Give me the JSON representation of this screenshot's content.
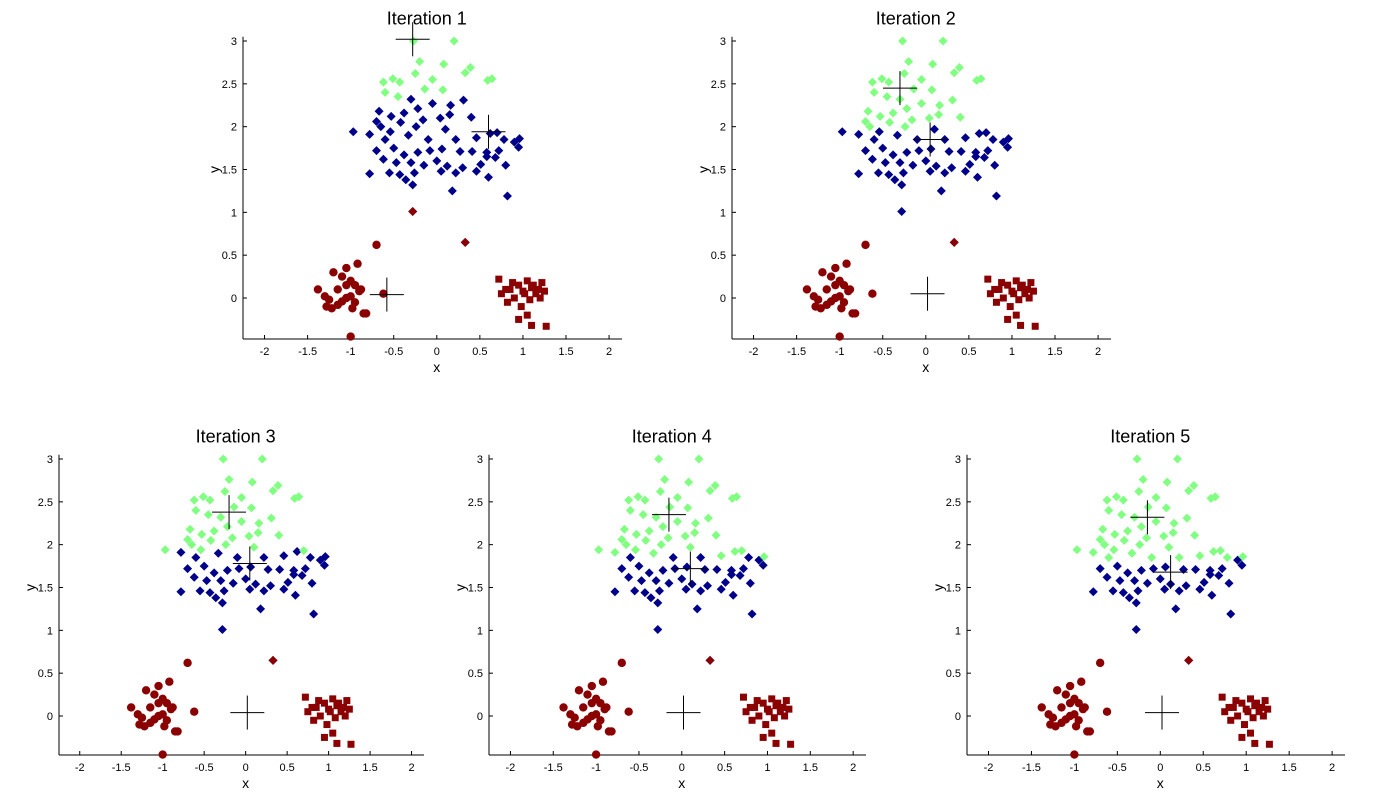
{
  "colors": {
    "light_green": "#80ff80",
    "dark_blue": "#00008b",
    "dark_red": "#8b0000",
    "axis": "#000000"
  },
  "markers": {
    "cluster_a": "diamond",
    "cluster_b": "circle",
    "cluster_c": "square",
    "centroid": "plus"
  },
  "shared_data": {
    "cluster_a": [
      [
        -0.28,
        1.01
      ],
      [
        0.33,
        0.65
      ],
      [
        -0.97,
        1.94
      ],
      [
        -0.27,
        3.0
      ],
      [
        0.2,
        3.0
      ],
      [
        -0.62,
        2.52
      ],
      [
        -0.51,
        2.56
      ],
      [
        -0.43,
        2.52
      ],
      [
        -0.25,
        2.62
      ],
      [
        -0.2,
        2.76
      ],
      [
        -0.05,
        2.55
      ],
      [
        0.08,
        2.73
      ],
      [
        0.33,
        2.63
      ],
      [
        0.39,
        2.69
      ],
      [
        -0.6,
        2.4
      ],
      [
        -0.67,
        2.18
      ],
      [
        -0.45,
        2.35
      ],
      [
        -0.3,
        2.32
      ],
      [
        -0.14,
        2.44
      ],
      [
        0.07,
        2.43
      ],
      [
        -0.78,
        1.91
      ],
      [
        -0.7,
        2.06
      ],
      [
        -0.53,
        2.12
      ],
      [
        -0.38,
        2.16
      ],
      [
        -0.22,
        2.21
      ],
      [
        -0.05,
        2.27
      ],
      [
        0.16,
        2.25
      ],
      [
        0.31,
        2.31
      ],
      [
        -0.65,
        2.0
      ],
      [
        -0.42,
        2.05
      ],
      [
        -0.24,
        2.0
      ],
      [
        0.04,
        2.1
      ],
      [
        -0.54,
        1.94
      ],
      [
        -0.33,
        1.9
      ],
      [
        0.59,
        2.54
      ],
      [
        0.64,
        2.56
      ],
      [
        0.15,
        2.14
      ],
      [
        0.4,
        2.11
      ],
      [
        -0.16,
        2.08
      ],
      [
        0.1,
        1.97
      ],
      [
        0.22,
        1.85
      ],
      [
        0.46,
        1.87
      ],
      [
        0.62,
        1.92
      ],
      [
        0.78,
        1.85
      ],
      [
        0.9,
        1.82
      ],
      [
        0.96,
        1.86
      ],
      [
        -0.7,
        1.72
      ],
      [
        -0.5,
        1.75
      ],
      [
        -0.38,
        1.67
      ],
      [
        -0.22,
        1.7
      ],
      [
        -0.08,
        1.72
      ],
      [
        0.06,
        1.74
      ],
      [
        0.27,
        1.71
      ],
      [
        0.41,
        1.71
      ],
      [
        0.58,
        1.7
      ],
      [
        0.72,
        1.72
      ],
      [
        0.95,
        1.76
      ],
      [
        -0.62,
        1.62
      ],
      [
        -0.47,
        1.58
      ],
      [
        -0.3,
        1.58
      ],
      [
        -0.15,
        1.55
      ],
      [
        0.0,
        1.6
      ],
      [
        0.12,
        1.54
      ],
      [
        0.3,
        1.52
      ],
      [
        0.51,
        1.56
      ],
      [
        0.68,
        1.64
      ],
      [
        0.8,
        1.55
      ],
      [
        -0.78,
        1.45
      ],
      [
        -0.55,
        1.46
      ],
      [
        -0.43,
        1.44
      ],
      [
        -0.26,
        1.46
      ],
      [
        0.05,
        1.48
      ],
      [
        0.22,
        1.46
      ],
      [
        0.46,
        1.48
      ],
      [
        0.6,
        1.41
      ],
      [
        -0.28,
        1.32
      ],
      [
        0.18,
        1.25
      ],
      [
        -0.36,
        1.38
      ],
      [
        -0.6,
        1.85
      ],
      [
        -0.1,
        1.85
      ],
      [
        0.7,
        1.93
      ],
      [
        0.58,
        1.65
      ],
      [
        0.82,
        1.19
      ]
    ],
    "cluster_b": [
      [
        -1.38,
        0.1
      ],
      [
        -1.3,
        0.02
      ],
      [
        -1.28,
        -0.1
      ],
      [
        -1.22,
        -0.12
      ],
      [
        -1.15,
        -0.08
      ],
      [
        -1.1,
        -0.04
      ],
      [
        -1.05,
        0.0
      ],
      [
        -1.0,
        0.02
      ],
      [
        -0.95,
        -0.05
      ],
      [
        -0.9,
        0.08
      ],
      [
        -0.85,
        -0.18
      ],
      [
        -0.82,
        -0.18
      ],
      [
        -0.95,
        0.15
      ],
      [
        -1.0,
        0.2
      ],
      [
        -1.05,
        0.15
      ],
      [
        -1.1,
        0.25
      ],
      [
        -1.05,
        0.35
      ],
      [
        -1.2,
        0.3
      ],
      [
        -0.92,
        0.4
      ],
      [
        -0.7,
        0.62
      ],
      [
        -0.62,
        0.05
      ],
      [
        -1.0,
        -0.45
      ],
      [
        -1.15,
        0.1
      ],
      [
        -0.88,
        0.1
      ],
      [
        -1.25,
        -0.02
      ],
      [
        -0.98,
        -0.12
      ]
    ],
    "cluster_c": [
      [
        0.72,
        0.22
      ],
      [
        0.75,
        0.05
      ],
      [
        0.8,
        0.1
      ],
      [
        0.82,
        -0.05
      ],
      [
        0.88,
        0.18
      ],
      [
        0.9,
        0.0
      ],
      [
        0.95,
        0.15
      ],
      [
        0.98,
        -0.1
      ],
      [
        1.0,
        0.08
      ],
      [
        1.02,
        0.05
      ],
      [
        1.05,
        0.2
      ],
      [
        1.08,
        -0.02
      ],
      [
        1.1,
        0.12
      ],
      [
        1.12,
        0.15
      ],
      [
        1.15,
        0.05
      ],
      [
        1.18,
        0.1
      ],
      [
        1.22,
        0.18
      ],
      [
        1.25,
        0.08
      ],
      [
        1.05,
        -0.2
      ],
      [
        1.1,
        -0.32
      ],
      [
        1.27,
        -0.33
      ],
      [
        0.95,
        -0.25
      ],
      [
        1.2,
        0.0
      ],
      [
        0.85,
        0.1
      ]
    ]
  },
  "panels": [
    {
      "title": "Iteration 1",
      "xlabel": "x",
      "ylabel": "y",
      "xticks": [
        "-2",
        "-1.5",
        "-1",
        "-0.5",
        "0",
        "0.5",
        "1",
        "1.5",
        "2"
      ],
      "yticks": [
        "0",
        "0.5",
        "1",
        "1.5",
        "2",
        "2.5",
        "3"
      ],
      "centroids": [
        [
          -0.28,
          3.02
        ],
        [
          0.6,
          1.94
        ],
        [
          -0.58,
          0.04
        ]
      ],
      "green_fraction": 0.2
    },
    {
      "title": "Iteration 2",
      "xlabel": "x",
      "ylabel": "y",
      "xticks": [
        "-2",
        "-1.5",
        "-1",
        "-0.5",
        "0",
        "0.5",
        "1",
        "1.5",
        "2"
      ],
      "yticks": [
        "0",
        "0.5",
        "1",
        "1.5",
        "2",
        "2.5",
        "3"
      ],
      "centroids": [
        [
          -0.3,
          2.45
        ],
        [
          0.05,
          1.85
        ],
        [
          0.02,
          0.05
        ]
      ],
      "green_fraction": 0.38
    },
    {
      "title": "Iteration 3",
      "xlabel": "x",
      "ylabel": "y",
      "xticks": [
        "-2",
        "-1.5",
        "-1",
        "-0.5",
        "0",
        "0.5",
        "1",
        "1.5",
        "2"
      ],
      "yticks": [
        "0",
        "0.5",
        "1",
        "1.5",
        "2",
        "2.5",
        "3"
      ],
      "centroids": [
        [
          -0.2,
          2.38
        ],
        [
          0.05,
          1.78
        ],
        [
          0.02,
          0.04
        ]
      ],
      "green_fraction": 0.45
    },
    {
      "title": "Iteration 4",
      "xlabel": "x",
      "ylabel": "y",
      "xticks": [
        "-2",
        "-1.5",
        "-1",
        "-0.5",
        "0",
        "0.5",
        "1",
        "1.5",
        "2"
      ],
      "yticks": [
        "0",
        "0.5",
        "1",
        "1.5",
        "2",
        "2.5",
        "3"
      ],
      "centroids": [
        [
          -0.15,
          2.35
        ],
        [
          0.1,
          1.72
        ],
        [
          0.02,
          0.04
        ]
      ],
      "green_fraction": 0.5
    },
    {
      "title": "Iteration 5",
      "xlabel": "x",
      "ylabel": "y",
      "xticks": [
        "-2",
        "-1.5",
        "-1",
        "-0.5",
        "0",
        "0.5",
        "1",
        "1.5",
        "2"
      ],
      "yticks": [
        "0",
        "0.5",
        "1",
        "1.5",
        "2",
        "2.5",
        "3"
      ],
      "centroids": [
        [
          -0.15,
          2.32
        ],
        [
          0.12,
          1.68
        ],
        [
          0.02,
          0.04
        ]
      ],
      "green_fraction": 0.52
    }
  ],
  "chart_data": [
    {
      "type": "scatter",
      "title": "Iteration 1",
      "xlabel": "x",
      "ylabel": "y",
      "xlim": [
        -2.25,
        2.15
      ],
      "ylim": [
        -0.45,
        3.05
      ],
      "grid": false,
      "series": [
        {
          "values": "shared_data.cluster_a",
          "marker": "diamond",
          "color_split": "green/blue by y, green_fraction 0.2"
        },
        {
          "values": "shared_data.cluster_b",
          "marker": "circle",
          "color": "dark_red"
        },
        {
          "values": "shared_data.cluster_c",
          "marker": "square",
          "color": "dark_red"
        },
        {
          "values": [
            [
              -0.28,
              3.02
            ],
            [
              0.6,
              1.94
            ],
            [
              -0.58,
              0.04
            ]
          ],
          "marker": "plus",
          "color": "black"
        }
      ]
    },
    {
      "type": "scatter",
      "title": "Iteration 2",
      "xlabel": "x",
      "ylabel": "y",
      "xlim": [
        -2.25,
        2.15
      ],
      "ylim": [
        -0.45,
        3.05
      ],
      "grid": false,
      "series": [
        {
          "values": "shared_data.cluster_a",
          "marker": "diamond",
          "color_split": "green/blue by y, green_fraction 0.38"
        },
        {
          "values": "shared_data.cluster_b",
          "marker": "circle",
          "color": "dark_red"
        },
        {
          "values": "shared_data.cluster_c",
          "marker": "square",
          "color": "dark_red"
        },
        {
          "values": [
            [
              -0.3,
              2.45
            ],
            [
              0.05,
              1.85
            ],
            [
              0.02,
              0.05
            ]
          ],
          "marker": "plus",
          "color": "black"
        }
      ]
    },
    {
      "type": "scatter",
      "title": "Iteration 3",
      "xlabel": "x",
      "ylabel": "y",
      "xlim": [
        -2.25,
        2.15
      ],
      "ylim": [
        -0.45,
        3.05
      ],
      "grid": false,
      "series": [
        {
          "values": "shared_data.cluster_a",
          "marker": "diamond",
          "color_split": "green/blue by y, green_fraction 0.45"
        },
        {
          "values": "shared_data.cluster_b",
          "marker": "circle",
          "color": "dark_red"
        },
        {
          "values": "shared_data.cluster_c",
          "marker": "square",
          "color": "dark_red"
        },
        {
          "values": [
            [
              -0.2,
              2.38
            ],
            [
              0.05,
              1.78
            ],
            [
              0.02,
              0.04
            ]
          ],
          "marker": "plus",
          "color": "black"
        }
      ]
    },
    {
      "type": "scatter",
      "title": "Iteration 4",
      "xlabel": "x",
      "ylabel": "y",
      "xlim": [
        -2.25,
        2.15
      ],
      "ylim": [
        -0.45,
        3.05
      ],
      "grid": false,
      "series": [
        {
          "values": "shared_data.cluster_a",
          "marker": "diamond",
          "color_split": "green/blue by y, green_fraction 0.5"
        },
        {
          "values": "shared_data.cluster_b",
          "marker": "circle",
          "color": "dark_red"
        },
        {
          "values": "shared_data.cluster_c",
          "marker": "square",
          "color": "dark_red"
        },
        {
          "values": [
            [
              -0.15,
              2.35
            ],
            [
              0.1,
              1.72
            ],
            [
              0.02,
              0.04
            ]
          ],
          "marker": "plus",
          "color": "black"
        }
      ]
    },
    {
      "type": "scatter",
      "title": "Iteration 5",
      "xlabel": "x",
      "ylabel": "y",
      "xlim": [
        -2.25,
        2.15
      ],
      "ylim": [
        -0.45,
        3.05
      ],
      "grid": false,
      "series": [
        {
          "values": "shared_data.cluster_a",
          "marker": "diamond",
          "color_split": "green/blue by y, green_fraction 0.52"
        },
        {
          "values": "shared_data.cluster_b",
          "marker": "circle",
          "color": "dark_red"
        },
        {
          "values": "shared_data.cluster_c",
          "marker": "square",
          "color": "dark_red"
        },
        {
          "values": [
            [
              -0.15,
              2.32
            ],
            [
              0.12,
              1.68
            ],
            [
              0.02,
              0.04
            ]
          ],
          "marker": "plus",
          "color": "black"
        }
      ]
    }
  ]
}
